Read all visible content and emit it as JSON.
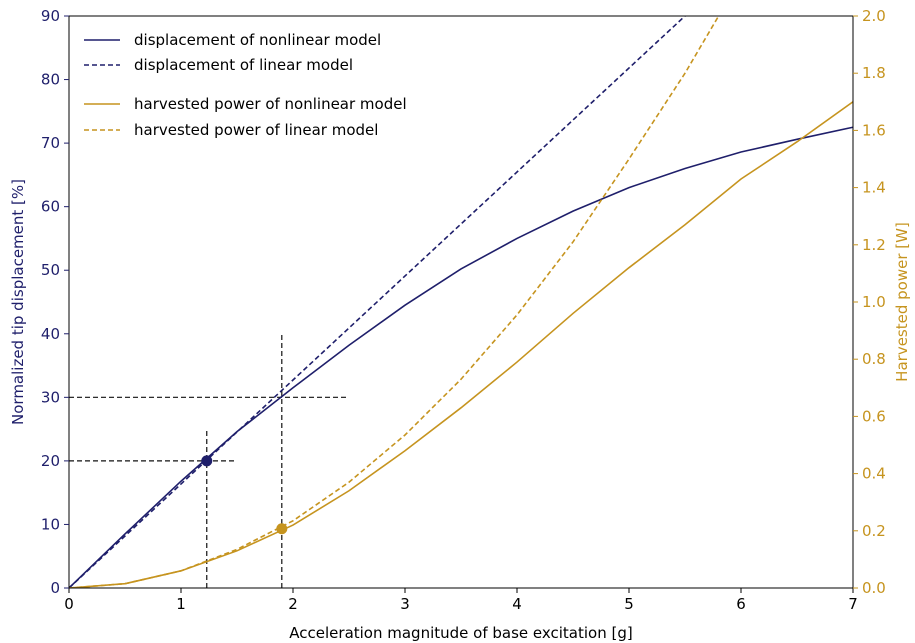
{
  "colors": {
    "displacement": "#1f1f6b",
    "power": "#c6941f",
    "guide": "#111111"
  },
  "chart_data": {
    "type": "line",
    "title": "",
    "xlabel": "Acceleration magnitude of base excitation [g]",
    "ylabel_left": "Normalized tip displacement [%]",
    "ylabel_right": "Harvested power [W]",
    "xlim": [
      0,
      7
    ],
    "ylim_left": [
      0,
      90
    ],
    "ylim_right": [
      0,
      2.0
    ],
    "x_ticks": [
      "0",
      "1",
      "2",
      "3",
      "4",
      "5",
      "6",
      "7"
    ],
    "y_left_ticks": [
      "0",
      "10",
      "20",
      "30",
      "40",
      "50",
      "60",
      "70",
      "80",
      "90"
    ],
    "y_right_ticks": [
      "0.0",
      "0.2",
      "0.4",
      "0.6",
      "0.8",
      "1.0",
      "1.2",
      "1.4",
      "1.6",
      "1.8",
      "2.0"
    ],
    "legend_position": "top-left",
    "series": [
      {
        "name": "displacement of nonlinear model",
        "axis": "left",
        "style": "solid",
        "x": [
          0,
          0.5,
          1,
          1.5,
          2,
          2.5,
          3,
          3.5,
          4,
          4.5,
          5,
          5.5,
          6,
          6.5,
          7
        ],
        "y": [
          0,
          8.5,
          16.8,
          24.6,
          31.5,
          38.2,
          44.5,
          50.2,
          55,
          59.3,
          63,
          66,
          68.6,
          70.6,
          72.5
        ]
      },
      {
        "name": "displacement of linear model",
        "axis": "left",
        "style": "dashed",
        "x": [
          0,
          5.5
        ],
        "y": [
          0,
          90
        ]
      },
      {
        "name": "harvested power of nonlinear model",
        "axis": "right",
        "style": "solid",
        "x": [
          0,
          0.5,
          1,
          1.5,
          2,
          2.5,
          3,
          3.5,
          4,
          4.5,
          5,
          5.5,
          6,
          6.5,
          7
        ],
        "y": [
          0,
          0.015,
          0.06,
          0.13,
          0.22,
          0.34,
          0.48,
          0.63,
          0.79,
          0.96,
          1.12,
          1.27,
          1.43,
          1.56,
          1.7
        ]
      },
      {
        "name": "harvested power of linear model",
        "axis": "right",
        "style": "dashed",
        "x": [
          0,
          0.5,
          1,
          1.5,
          2,
          2.5,
          3,
          3.5,
          4,
          4.5,
          5,
          5.5,
          5.8
        ],
        "y": [
          0,
          0.015,
          0.06,
          0.135,
          0.235,
          0.37,
          0.535,
          0.73,
          0.955,
          1.21,
          1.5,
          1.8,
          2.0
        ]
      }
    ],
    "markers": [
      {
        "x": 1.23,
        "y": 20,
        "axis": "left",
        "series": "displacement"
      },
      {
        "x": 1.9,
        "y": 0.207,
        "axis": "right",
        "series": "power"
      }
    ],
    "guides": {
      "horizontal": [
        {
          "y": 20,
          "x_start": 0,
          "x_end": 1.5
        },
        {
          "y": 30,
          "x_start": 0,
          "x_end": 2.5
        }
      ],
      "vertical": [
        {
          "x": 1.23,
          "y_start": 0,
          "y_end": 25
        },
        {
          "x": 1.9,
          "y_start": 0,
          "y_end": 40
        }
      ]
    }
  }
}
